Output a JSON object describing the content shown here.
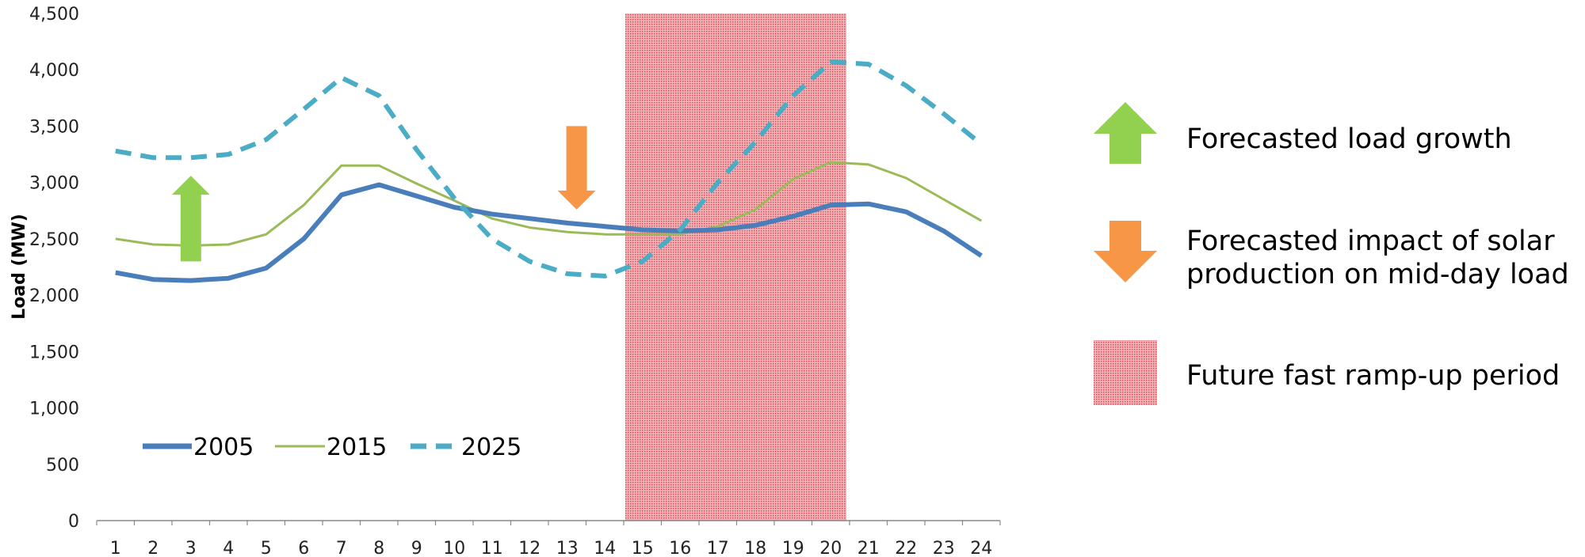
{
  "chart_data": {
    "type": "line",
    "title": "",
    "xlabel": "",
    "ylabel": "Load (MW)",
    "ylim": [
      0,
      4500
    ],
    "yticks": [
      0,
      500,
      1000,
      1500,
      2000,
      2500,
      3000,
      3500,
      4000,
      4500
    ],
    "ytick_labels": [
      "0",
      "500",
      "1,000",
      "1,500",
      "2,000",
      "2,500",
      "3,000",
      "3,500",
      "4,000",
      "4,500"
    ],
    "categories": [
      "1",
      "2",
      "3",
      "4",
      "5",
      "6",
      "7",
      "8",
      "9",
      "10",
      "11",
      "12",
      "13",
      "14",
      "15",
      "16",
      "17",
      "18",
      "19",
      "20",
      "21",
      "22",
      "23",
      "24"
    ],
    "grid": false,
    "legend_placement": "bottom-left",
    "shaded_period": {
      "label": "Future fast ramp-up period",
      "x_start": 15,
      "x_end": 20,
      "color": "#e8737a"
    },
    "series": [
      {
        "name": "2005",
        "style": "solid-thick",
        "color": "#4a7ebb",
        "values": [
          2200,
          2140,
          2130,
          2150,
          2240,
          2500,
          2890,
          2980,
          2880,
          2780,
          2720,
          2680,
          2640,
          2610,
          2580,
          2570,
          2580,
          2620,
          2700,
          2800,
          2810,
          2740,
          2570,
          2350
        ]
      },
      {
        "name": "2015",
        "style": "solid-thin",
        "color": "#9bbb59",
        "values": [
          2500,
          2450,
          2440,
          2450,
          2540,
          2800,
          3150,
          3150,
          2990,
          2840,
          2680,
          2600,
          2560,
          2540,
          2540,
          2540,
          2610,
          2760,
          3030,
          3180,
          3160,
          3040,
          2850,
          2660
        ]
      },
      {
        "name": "2025",
        "style": "dashed",
        "color": "#4bacc6",
        "values": [
          3280,
          3220,
          3220,
          3250,
          3380,
          3650,
          3930,
          3770,
          3290,
          2860,
          2500,
          2300,
          2190,
          2170,
          2300,
          2580,
          3000,
          3360,
          3770,
          4070,
          4050,
          3860,
          3610,
          3340
        ]
      }
    ],
    "annotations": [
      {
        "kind": "up-arrow",
        "meaning": "Forecasted load growth",
        "color": "#92d050",
        "at_x": 3,
        "from_y": 2300,
        "to_y": 3060
      },
      {
        "kind": "down-arrow",
        "meaning": "Forecasted impact of solar production on mid-day load",
        "color": "#f79646",
        "at_x": 13.25,
        "from_y": 3500,
        "to_y": 2760
      }
    ]
  },
  "callouts": {
    "growth_text": "Forecasted load growth",
    "solar_line1": "Forecasted impact of solar",
    "solar_line2": "production on mid-day load",
    "ramp_text": "Future fast ramp-up period"
  },
  "colors": {
    "green_arrow": "#92d050",
    "orange_arrow": "#f79646",
    "shade": "#e8737a"
  }
}
